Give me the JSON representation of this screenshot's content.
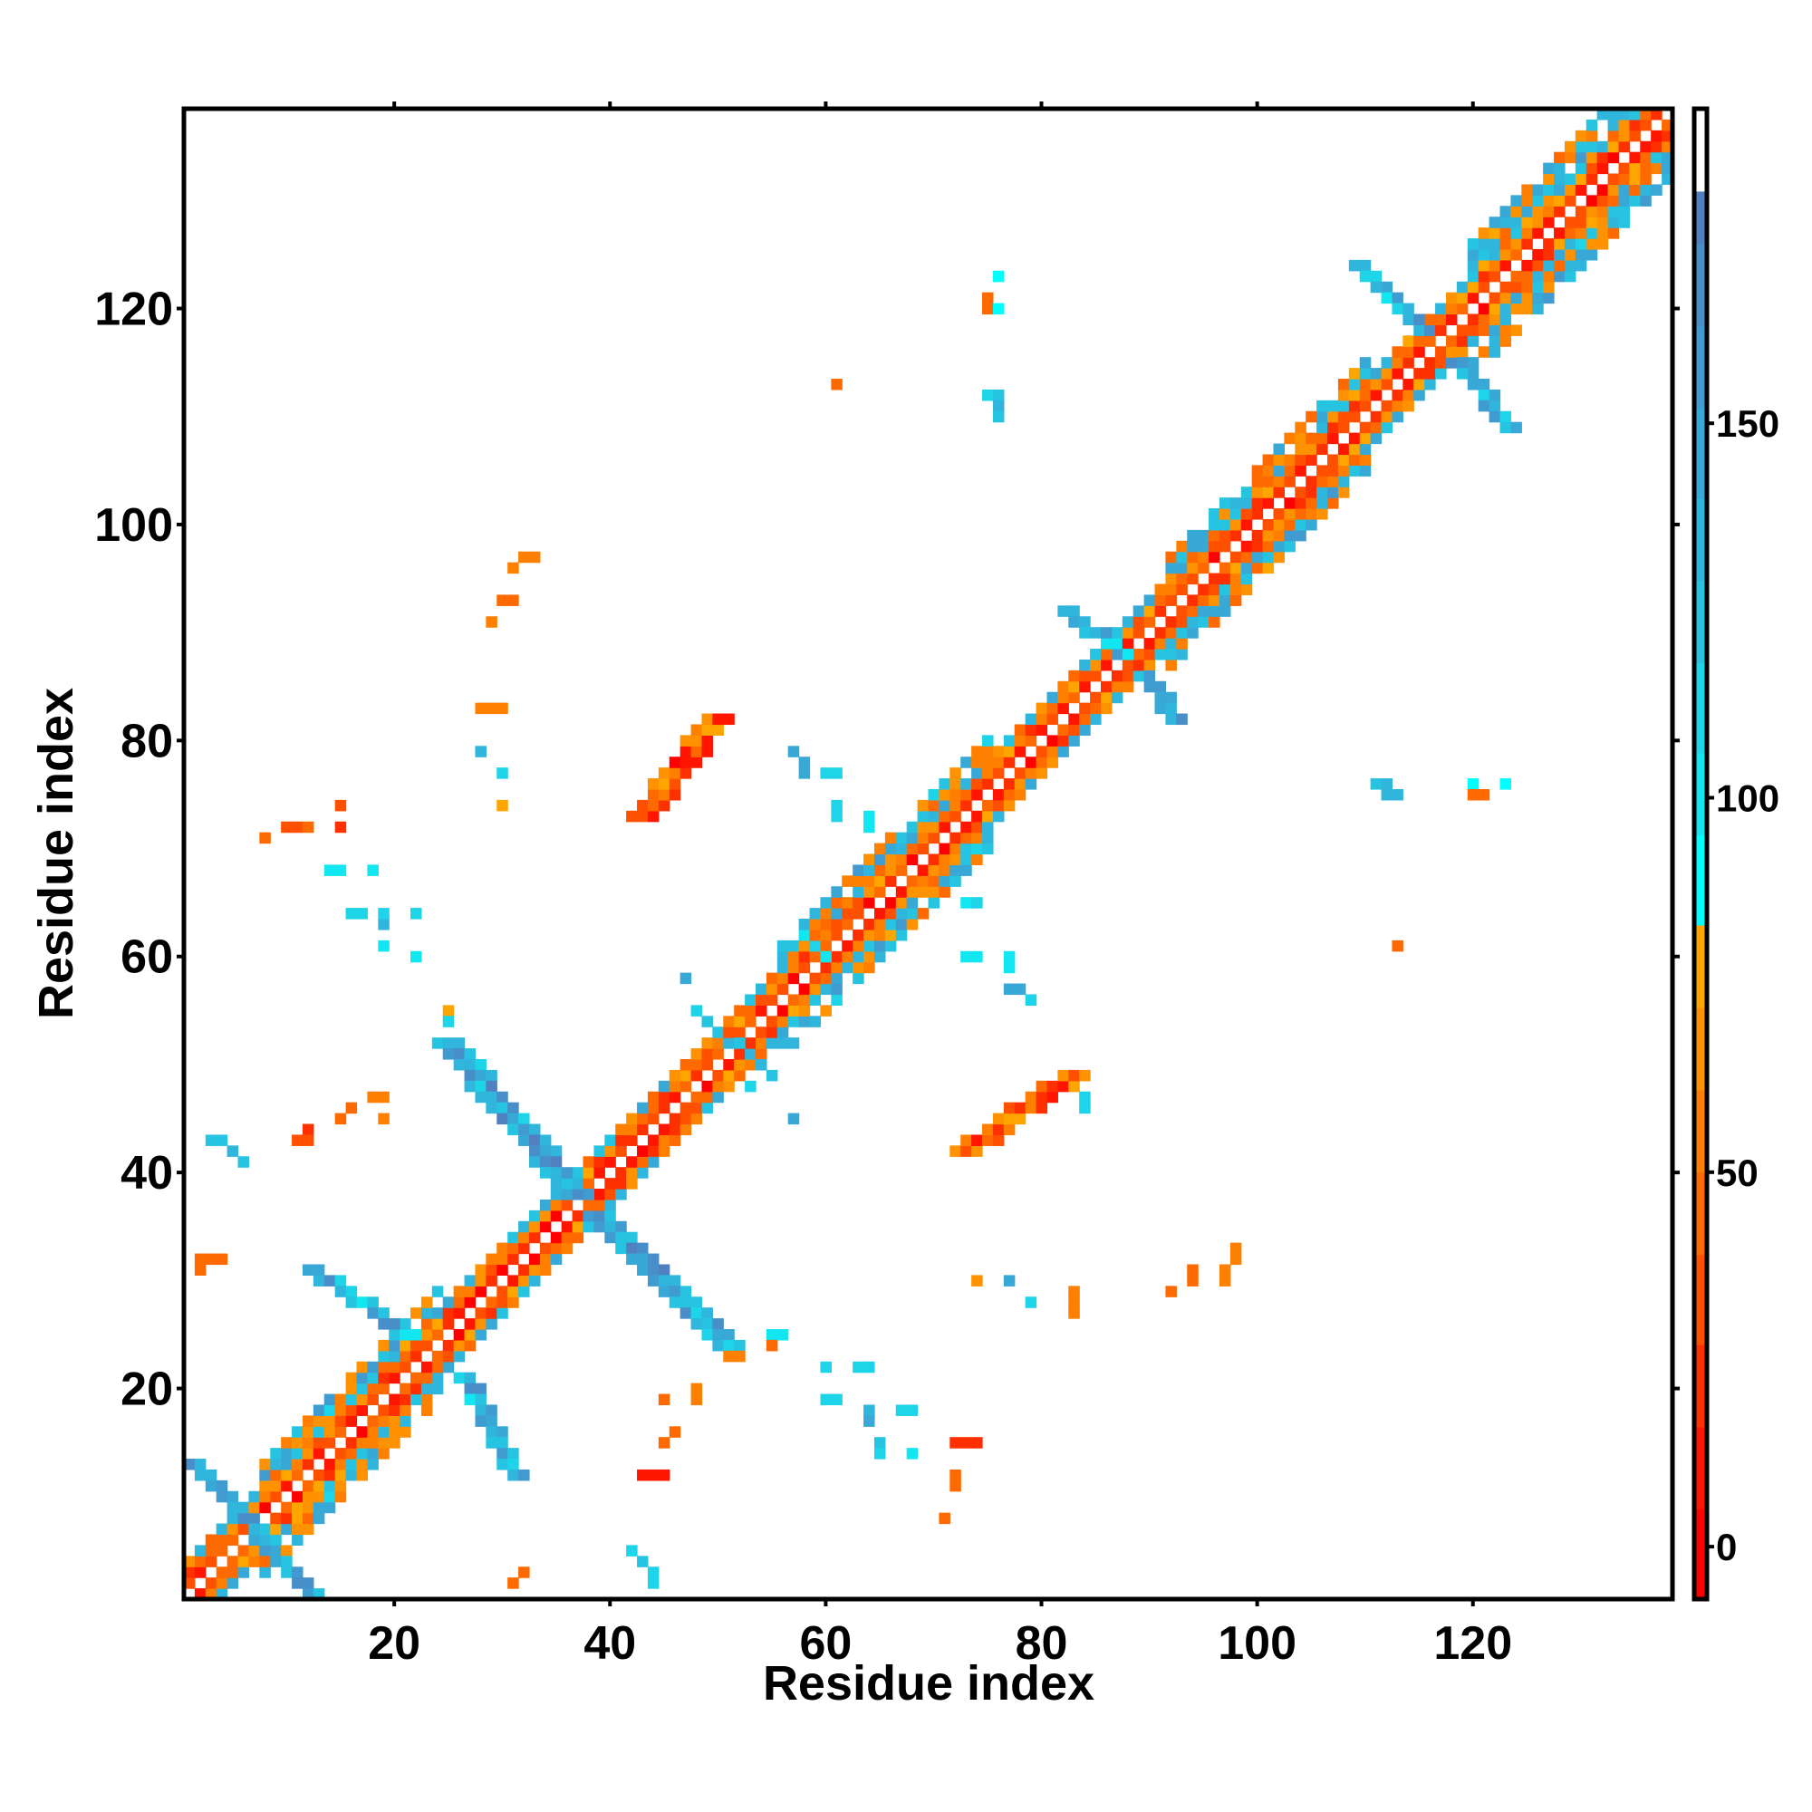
{
  "chart_data": {
    "type": "heatmap",
    "title": "",
    "xlabel": "Residue index",
    "ylabel": "Residue index",
    "xlim": [
      0.5,
      138.5
    ],
    "ylim": [
      0.5,
      138.5
    ],
    "xticks": [
      20,
      40,
      60,
      80,
      100,
      120
    ],
    "yticks": [
      20,
      40,
      60,
      80,
      100,
      120
    ],
    "colorbar": {
      "ticks": [
        0,
        50,
        100,
        150
      ],
      "range": [
        -7,
        192
      ],
      "bands": [
        {
          "from": -7,
          "to": 5,
          "color": "#ff0000"
        },
        {
          "from": 5,
          "to": 16,
          "color": "#ff1500"
        },
        {
          "from": 16,
          "to": 27,
          "color": "#ff3000"
        },
        {
          "from": 27,
          "to": 39,
          "color": "#ff5000"
        },
        {
          "from": 39,
          "to": 50,
          "color": "#ff6a00"
        },
        {
          "from": 50,
          "to": 61,
          "color": "#ff7f00"
        },
        {
          "from": 61,
          "to": 72,
          "color": "#ff9200"
        },
        {
          "from": 72,
          "to": 83,
          "color": "#ffa500"
        },
        {
          "from": 83,
          "to": 95,
          "color": "#00ffff"
        },
        {
          "from": 95,
          "to": 106,
          "color": "#12e6f0"
        },
        {
          "from": 106,
          "to": 118,
          "color": "#1ed4e8"
        },
        {
          "from": 118,
          "to": 129,
          "color": "#27c4e2"
        },
        {
          "from": 129,
          "to": 140,
          "color": "#30b6dc"
        },
        {
          "from": 140,
          "to": 152,
          "color": "#38a8d6"
        },
        {
          "from": 152,
          "to": 163,
          "color": "#409bd0"
        },
        {
          "from": 163,
          "to": 174,
          "color": "#488ec8"
        },
        {
          "from": 174,
          "to": 181,
          "color": "#5080c0"
        },
        {
          "from": 181,
          "to": 192,
          "color": "#ffffff"
        }
      ]
    },
    "diagonal_segments": [
      {
        "start": 1,
        "end": 8,
        "halfwidth": 3
      },
      {
        "start": 8,
        "end": 24,
        "halfwidth": 5
      },
      {
        "start": 24,
        "end": 48,
        "halfwidth": 3
      },
      {
        "start": 48,
        "end": 56,
        "halfwidth": 3
      },
      {
        "start": 56,
        "end": 75,
        "halfwidth": 5
      },
      {
        "start": 75,
        "end": 92,
        "halfwidth": 3
      },
      {
        "start": 92,
        "end": 110,
        "halfwidth": 5
      },
      {
        "start": 110,
        "end": 120,
        "halfwidth": 3
      },
      {
        "start": 120,
        "end": 138,
        "halfwidth": 6
      }
    ],
    "strips": [
      {
        "from": [
          1,
          13
        ],
        "to": [
          12,
          1
        ],
        "thickness": 2,
        "vrange": [
          120,
          178
        ]
      },
      {
        "from": [
          12,
          31
        ],
        "to": [
          21,
          25
        ],
        "thickness": 2,
        "vrange": [
          100,
          175
        ]
      },
      {
        "from": [
          26,
          21
        ],
        "to": [
          31,
          12
        ],
        "thickness": 2,
        "vrange": [
          100,
          175
        ]
      },
      {
        "from": [
          24,
          52
        ],
        "to": [
          36,
          38
        ],
        "thickness": 3,
        "vrange": [
          110,
          178
        ]
      },
      {
        "from": [
          38,
          36
        ],
        "to": [
          50,
          24
        ],
        "thickness": 3,
        "vrange": [
          110,
          178
        ]
      },
      {
        "from": [
          82,
          92
        ],
        "to": [
          87,
          88
        ],
        "thickness": 2,
        "vrange": [
          95,
          170
        ]
      },
      {
        "from": [
          89,
          86
        ],
        "to": [
          92,
          82
        ],
        "thickness": 2,
        "vrange": [
          95,
          170
        ]
      },
      {
        "from": [
          109,
          124
        ],
        "to": [
          115,
          118
        ],
        "thickness": 2,
        "vrange": [
          100,
          178
        ]
      },
      {
        "from": [
          118,
          115
        ],
        "to": [
          123,
          109
        ],
        "thickness": 2,
        "vrange": [
          100,
          178
        ]
      },
      {
        "from": [
          42,
          73
        ],
        "to": [
          49,
          82
        ],
        "thickness": 3,
        "vrange": [
          0,
          80
        ]
      },
      {
        "from": [
          72,
          42
        ],
        "to": [
          82,
          49
        ],
        "thickness": 3,
        "vrange": [
          0,
          80
        ]
      },
      {
        "from": [
          48,
          55
        ],
        "to": [
          55,
          49
        ],
        "thickness": 1,
        "vrange": [
          90,
          140
        ]
      },
      {
        "from": [
          60,
          60
        ],
        "to": [
          58,
          62
        ],
        "thickness": 1,
        "vrange": [
          90,
          130
        ]
      }
    ],
    "points": [
      [
        8,
        71,
        40
      ],
      [
        10,
        72,
        30
      ],
      [
        11,
        72,
        30
      ],
      [
        12,
        72,
        40
      ],
      [
        15,
        72,
        20
      ],
      [
        15,
        74,
        30
      ],
      [
        30,
        93,
        40
      ],
      [
        31,
        93,
        40
      ],
      [
        31,
        96,
        50
      ],
      [
        32,
        97,
        50
      ],
      [
        33,
        97,
        50
      ],
      [
        29,
        91,
        50
      ],
      [
        28,
        83,
        50
      ],
      [
        29,
        83,
        50
      ],
      [
        30,
        83,
        60
      ],
      [
        28,
        79,
        130
      ],
      [
        30,
        77,
        110
      ],
      [
        30,
        74,
        75
      ],
      [
        14,
        68,
        100
      ],
      [
        15,
        68,
        100
      ],
      [
        18,
        68,
        100
      ],
      [
        16,
        64,
        110
      ],
      [
        17,
        64,
        110
      ],
      [
        19,
        63,
        130
      ],
      [
        19,
        64,
        110
      ],
      [
        22,
        64,
        110
      ],
      [
        19,
        61,
        100
      ],
      [
        22,
        60,
        100
      ],
      [
        3,
        43,
        120
      ],
      [
        4,
        43,
        120
      ],
      [
        5,
        42,
        130
      ],
      [
        6,
        41,
        120
      ],
      [
        2,
        32,
        40
      ],
      [
        3,
        32,
        40
      ],
      [
        4,
        32,
        40
      ],
      [
        2,
        31,
        40
      ],
      [
        12,
        44,
        20
      ],
      [
        11,
        43,
        30
      ],
      [
        12,
        43,
        30
      ],
      [
        15,
        45,
        40
      ],
      [
        16,
        46,
        40
      ],
      [
        18,
        47,
        50
      ],
      [
        19,
        47,
        50
      ],
      [
        19,
        45,
        50
      ],
      [
        42,
        5,
        110
      ],
      [
        43,
        4,
        120
      ],
      [
        44,
        3,
        110
      ],
      [
        44,
        2,
        110
      ],
      [
        32,
        3,
        40
      ],
      [
        31,
        2,
        40
      ],
      [
        43,
        12,
        10
      ],
      [
        44,
        12,
        10
      ],
      [
        45,
        12,
        10
      ],
      [
        45,
        15,
        40
      ],
      [
        46,
        16,
        40
      ],
      [
        45,
        19,
        40
      ],
      [
        48,
        20,
        50
      ],
      [
        48,
        19,
        50
      ],
      [
        60,
        22,
        110
      ],
      [
        63,
        22,
        110
      ],
      [
        64,
        22,
        110
      ],
      [
        60,
        19,
        110
      ],
      [
        61,
        19,
        110
      ],
      [
        64,
        18,
        130
      ],
      [
        64,
        17,
        140
      ],
      [
        65,
        15,
        120
      ],
      [
        67,
        18,
        110
      ],
      [
        68,
        18,
        110
      ],
      [
        68,
        14,
        100
      ],
      [
        65,
        14,
        110
      ],
      [
        72,
        15,
        20
      ],
      [
        73,
        15,
        20
      ],
      [
        74,
        15,
        20
      ],
      [
        72,
        12,
        40
      ],
      [
        72,
        11,
        40
      ],
      [
        71,
        8,
        40
      ],
      [
        55,
        25,
        100
      ],
      [
        56,
        25,
        100
      ],
      [
        55,
        24,
        40
      ],
      [
        51,
        23,
        50
      ],
      [
        52,
        23,
        50
      ],
      [
        57,
        79,
        150
      ],
      [
        58,
        78,
        150
      ],
      [
        58,
        77,
        150
      ],
      [
        60,
        77,
        110
      ],
      [
        61,
        77,
        110
      ],
      [
        61,
        113,
        40
      ],
      [
        76,
        123,
        90
      ],
      [
        75,
        121,
        40
      ],
      [
        75,
        120,
        40
      ],
      [
        76,
        120,
        90
      ],
      [
        75,
        112,
        110
      ],
      [
        76,
        112,
        120
      ],
      [
        76,
        111,
        130
      ],
      [
        76,
        110,
        120
      ],
      [
        61,
        74,
        110
      ],
      [
        61,
        73,
        110
      ],
      [
        64,
        73,
        100
      ],
      [
        64,
        72,
        100
      ],
      [
        73,
        65,
        100
      ],
      [
        74,
        65,
        110
      ],
      [
        73,
        60,
        100
      ],
      [
        74,
        60,
        100
      ],
      [
        77,
        60,
        100
      ],
      [
        77,
        59,
        100
      ],
      [
        77,
        57,
        150
      ],
      [
        78,
        57,
        150
      ],
      [
        79,
        56,
        110
      ],
      [
        53,
        48,
        110
      ],
      [
        57,
        45,
        150
      ],
      [
        47,
        58,
        150
      ],
      [
        111,
        76,
        120
      ],
      [
        112,
        76,
        130
      ],
      [
        113,
        75,
        130
      ],
      [
        112,
        75,
        130
      ],
      [
        120,
        76,
        90
      ],
      [
        120,
        75,
        40
      ],
      [
        121,
        75,
        40
      ],
      [
        123,
        76,
        90
      ],
      [
        113,
        61,
        40
      ],
      [
        74,
        30,
        70
      ],
      [
        77,
        30,
        150
      ],
      [
        79,
        28,
        110
      ],
      [
        83,
        29,
        50
      ],
      [
        83,
        28,
        50
      ],
      [
        83,
        27,
        50
      ],
      [
        92,
        29,
        40
      ],
      [
        94,
        30,
        40
      ],
      [
        94,
        31,
        40
      ],
      [
        97,
        30,
        50
      ],
      [
        97,
        31,
        50
      ],
      [
        98,
        32,
        50
      ],
      [
        98,
        33,
        50
      ],
      [
        83,
        48,
        80
      ],
      [
        84,
        47,
        110
      ],
      [
        84,
        46,
        110
      ],
      [
        25,
        55,
        80
      ],
      [
        25,
        54,
        110
      ]
    ]
  }
}
